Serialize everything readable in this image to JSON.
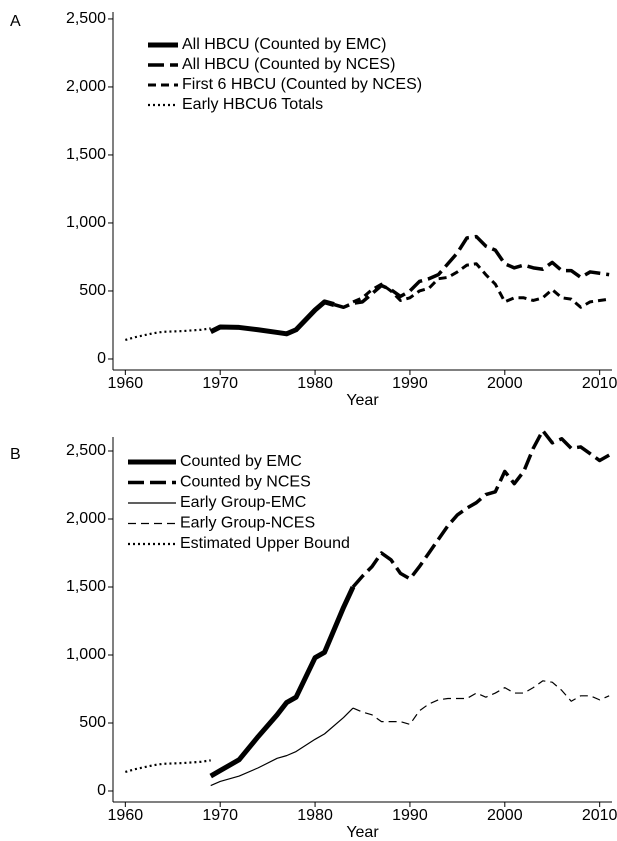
{
  "chart_data": [
    {
      "type": "line",
      "panel": "A",
      "xlabel": "Year",
      "xlim": [
        1958.7,
        2011.3
      ],
      "xticks": [
        1960,
        1970,
        1980,
        1990,
        2000,
        2010
      ],
      "ylim": [
        -81,
        2551
      ],
      "yticks": [
        0,
        500,
        {
          "value": 1000,
          "label": "1,000"
        },
        {
          "value": 1500,
          "label": "1,500"
        },
        {
          "value": 2000,
          "label": "2,000"
        },
        {
          "value": 2500,
          "label": "2,500"
        }
      ],
      "series": [
        {
          "name": "All HBCU (Counted by EMC)",
          "color": "#000000",
          "style": "solid-thick",
          "x": [
            1969,
            1970,
            1972,
            1974,
            1976,
            1977,
            1978,
            1980,
            1981,
            1982
          ],
          "values": [
            200,
            235,
            232,
            215,
            195,
            185,
            215,
            360,
            420,
            400
          ]
        },
        {
          "name": "All HBCU (Counted by NCES)",
          "color": "#000000",
          "style": "long-dash",
          "x": [
            1982,
            1983,
            1984,
            1985,
            1986,
            1987,
            1988,
            1989,
            1990,
            1991,
            1992,
            1993,
            1994,
            1995,
            1996,
            1997,
            1998,
            1999,
            2000,
            2001,
            2002,
            2003,
            2004,
            2005,
            2006,
            2007,
            2008,
            2009,
            2010,
            2011
          ],
          "values": [
            400,
            380,
            410,
            420,
            480,
            540,
            510,
            460,
            500,
            570,
            590,
            620,
            700,
            780,
            890,
            900,
            830,
            800,
            700,
            670,
            690,
            670,
            660,
            710,
            650,
            650,
            600,
            640,
            630,
            620
          ]
        },
        {
          "name": "First 6 HBCU (Counted by NCES)",
          "color": "#000000",
          "style": "dash",
          "x": [
            1984,
            1985,
            1986,
            1987,
            1988,
            1989,
            1990,
            1991,
            1992,
            1993,
            1994,
            1995,
            1996,
            1997,
            1998,
            1999,
            2000,
            2001,
            2002,
            2003,
            2004,
            2005,
            2006,
            2007,
            2008,
            2009,
            2010,
            2011
          ],
          "values": [
            420,
            450,
            510,
            550,
            500,
            430,
            450,
            500,
            520,
            590,
            600,
            640,
            690,
            700,
            620,
            550,
            420,
            450,
            450,
            430,
            450,
            510,
            450,
            440,
            380,
            420,
            430,
            440
          ]
        },
        {
          "name": "Early HBCU6 Totals",
          "color": "#000000",
          "style": "dot",
          "x": [
            1960,
            1961,
            1962,
            1963,
            1964,
            1966,
            1968,
            1969
          ],
          "values": [
            140,
            160,
            175,
            190,
            200,
            205,
            215,
            225
          ]
        }
      ]
    },
    {
      "type": "line",
      "panel": "B",
      "xlabel": "Year",
      "xlim": [
        1958.7,
        2011.3
      ],
      "xticks": [
        1960,
        1970,
        1980,
        1990,
        2000,
        2010
      ],
      "ylim": [
        -81,
        2603
      ],
      "yticks": [
        0,
        500,
        {
          "value": 1000,
          "label": "1,000"
        },
        {
          "value": 1500,
          "label": "1,500"
        },
        {
          "value": 2000,
          "label": "2,000"
        },
        {
          "value": 2500,
          "label": "2,500"
        }
      ],
      "series": [
        {
          "name": "Counted by EMC",
          "color": "#000000",
          "style": "solid-thick",
          "x": [
            1969,
            1970,
            1972,
            1974,
            1976,
            1977,
            1978,
            1980,
            1981,
            1983,
            1984
          ],
          "values": [
            110,
            150,
            230,
            400,
            560,
            650,
            690,
            980,
            1020,
            1350,
            1500
          ]
        },
        {
          "name": "Counted by NCES",
          "color": "#000000",
          "style": "long-dash",
          "x": [
            1984,
            1985,
            1986,
            1987,
            1988,
            1989,
            1990,
            1991,
            1992,
            1993,
            1994,
            1995,
            1996,
            1997,
            1998,
            1999,
            2000,
            2001,
            2002,
            2003,
            2004,
            2005,
            2006,
            2007,
            2008,
            2009,
            2010,
            2011
          ],
          "values": [
            1500,
            1580,
            1650,
            1750,
            1700,
            1600,
            1560,
            1650,
            1750,
            1850,
            1950,
            2030,
            2080,
            2120,
            2180,
            2200,
            2350,
            2260,
            2350,
            2520,
            2650,
            2560,
            2590,
            2520,
            2530,
            2480,
            2430,
            2470
          ]
        },
        {
          "name": "Early Group-EMC",
          "color": "#000000",
          "style": "solid-thin",
          "x": [
            1969,
            1970,
            1972,
            1974,
            1976,
            1977,
            1978,
            1980,
            1981,
            1983,
            1984
          ],
          "values": [
            40,
            70,
            110,
            170,
            240,
            260,
            290,
            380,
            420,
            540,
            610
          ]
        },
        {
          "name": "Early Group-NCES",
          "color": "#000000",
          "style": "dash-thin",
          "x": [
            1984,
            1985,
            1986,
            1987,
            1988,
            1989,
            1990,
            1991,
            1992,
            1993,
            1994,
            1995,
            1996,
            1997,
            1998,
            1999,
            2000,
            2001,
            2002,
            2003,
            2004,
            2005,
            2006,
            2007,
            2008,
            2009,
            2010,
            2011
          ],
          "values": [
            610,
            580,
            560,
            510,
            510,
            510,
            490,
            590,
            640,
            670,
            680,
            680,
            680,
            720,
            690,
            720,
            760,
            720,
            720,
            760,
            810,
            800,
            740,
            660,
            700,
            700,
            670,
            700
          ]
        },
        {
          "name": "Estimated Upper Bound",
          "color": "#000000",
          "style": "dot",
          "x": [
            1960,
            1961,
            1962,
            1963,
            1964,
            1966,
            1968,
            1969
          ],
          "values": [
            140,
            160,
            175,
            190,
            200,
            205,
            215,
            225
          ]
        }
      ]
    }
  ]
}
